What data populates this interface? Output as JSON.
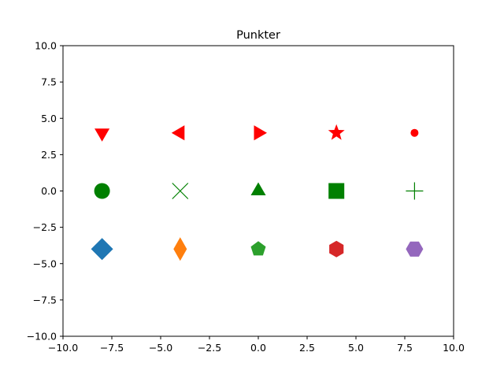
{
  "chart_data": {
    "type": "scatter",
    "title": "Punkter",
    "xlabel": "",
    "ylabel": "",
    "xlim": [
      -10,
      10
    ],
    "ylim": [
      -10,
      10
    ],
    "grid": false,
    "xticks": [
      -10,
      -7.5,
      -5,
      -2.5,
      0,
      2.5,
      5,
      7.5,
      10
    ],
    "yticks": [
      -10,
      -7.5,
      -5,
      -2.5,
      0,
      2.5,
      5,
      7.5,
      10
    ],
    "xtick_labels": [
      "−10.0",
      "−7.5",
      "−5.0",
      "−2.5",
      "0.0",
      "2.5",
      "5.0",
      "7.5",
      "10.0"
    ],
    "ytick_labels": [
      "−10.0",
      "−7.5",
      "−5.0",
      "−2.5",
      "0.0",
      "2.5",
      "5.0",
      "7.5",
      "10.0"
    ],
    "points": [
      {
        "x": -8,
        "y": 4,
        "marker": "triangle-down",
        "color": "#ff0000"
      },
      {
        "x": -4,
        "y": 4,
        "marker": "triangle-left",
        "color": "#ff0000"
      },
      {
        "x": 0,
        "y": 4,
        "marker": "triangle-right",
        "color": "#ff0000"
      },
      {
        "x": 4,
        "y": 4,
        "marker": "star",
        "color": "#ff0000"
      },
      {
        "x": 8,
        "y": 4,
        "marker": "small-circle",
        "color": "#ff0000"
      },
      {
        "x": -8,
        "y": 0,
        "marker": "circle",
        "color": "#008000"
      },
      {
        "x": -4,
        "y": 0,
        "marker": "x",
        "color": "#008000"
      },
      {
        "x": 0,
        "y": 0,
        "marker": "triangle-up",
        "color": "#008000"
      },
      {
        "x": 4,
        "y": 0,
        "marker": "square",
        "color": "#008000"
      },
      {
        "x": 8,
        "y": 0,
        "marker": "plus",
        "color": "#008000"
      },
      {
        "x": -8,
        "y": -4,
        "marker": "diamond",
        "color": "#1f77b4"
      },
      {
        "x": -4,
        "y": -4,
        "marker": "thin-diamond",
        "color": "#ff7f0e"
      },
      {
        "x": 0,
        "y": -4,
        "marker": "pentagon",
        "color": "#2ca02c"
      },
      {
        "x": 4,
        "y": -4,
        "marker": "hexagon",
        "color": "#d62728"
      },
      {
        "x": 8,
        "y": -4,
        "marker": "hexagon-flat",
        "color": "#9467bd"
      }
    ]
  }
}
